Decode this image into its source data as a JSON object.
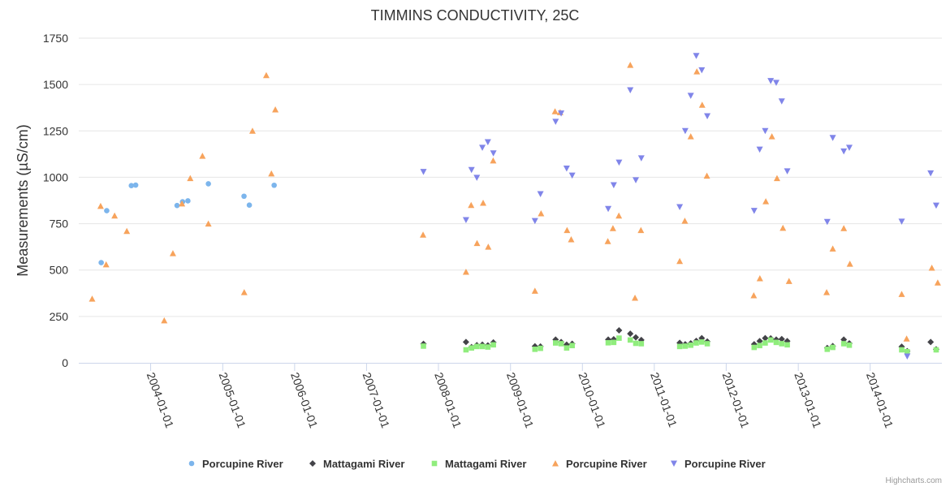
{
  "chart_data": {
    "type": "scatter",
    "title": "TIMMINS CONDUCTIVITY, 25C",
    "ylabel": "Measurements (µS/cm)",
    "xlabel": "",
    "ylim": [
      0,
      1750
    ],
    "y_ticks": [
      0,
      250,
      500,
      750,
      1000,
      1250,
      1500,
      1750
    ],
    "xlim": [
      "2003-01-01",
      "2014-12-31"
    ],
    "x_ticks": [
      "2004-01-01",
      "2005-01-01",
      "2006-01-01",
      "2007-01-01",
      "2008-01-01",
      "2009-01-01",
      "2010-01-01",
      "2011-01-01",
      "2012-01-01",
      "2013-01-01",
      "2014-01-01"
    ],
    "grid": "horizontal",
    "legend": "bottom",
    "credits": "Highcharts.com",
    "series": [
      {
        "name": "Porcupine River",
        "marker": "circle",
        "color": "#7cb5ec",
        "points": [
          [
            "2003-04-25",
            540
          ],
          [
            "2003-05-23",
            820
          ],
          [
            "2003-09-25",
            955
          ],
          [
            "2003-10-17",
            958
          ],
          [
            "2004-05-14",
            848
          ],
          [
            "2004-06-11",
            868
          ],
          [
            "2004-07-08",
            873
          ],
          [
            "2004-10-20",
            965
          ],
          [
            "2005-04-19",
            898
          ],
          [
            "2005-05-16",
            850
          ],
          [
            "2005-09-19",
            957
          ]
        ]
      },
      {
        "name": "Mattagami River",
        "marker": "diamond",
        "color": "#434348",
        "points": [
          [
            "2007-10-17",
            102
          ],
          [
            "2008-05-20",
            112
          ],
          [
            "2008-06-17",
            85
          ],
          [
            "2008-07-14",
            95
          ],
          [
            "2008-08-11",
            98
          ],
          [
            "2008-09-08",
            94
          ],
          [
            "2008-10-06",
            110
          ],
          [
            "2009-05-05",
            89
          ],
          [
            "2009-06-02",
            88
          ],
          [
            "2009-08-18",
            125
          ],
          [
            "2009-09-15",
            112
          ],
          [
            "2009-10-13",
            98
          ],
          [
            "2009-11-10",
            103
          ],
          [
            "2010-05-12",
            125
          ],
          [
            "2010-06-09",
            127
          ],
          [
            "2010-07-06",
            175
          ],
          [
            "2010-09-01",
            157
          ],
          [
            "2010-09-29",
            137
          ],
          [
            "2010-10-27",
            123
          ],
          [
            "2011-05-10",
            108
          ],
          [
            "2011-06-07",
            100
          ],
          [
            "2011-07-05",
            105
          ],
          [
            "2011-08-02",
            118
          ],
          [
            "2011-08-30",
            133
          ],
          [
            "2011-09-27",
            115
          ],
          [
            "2012-05-22",
            100
          ],
          [
            "2012-06-19",
            117
          ],
          [
            "2012-07-17",
            133
          ],
          [
            "2012-08-14",
            132
          ],
          [
            "2012-09-11",
            125
          ],
          [
            "2012-10-09",
            128
          ],
          [
            "2012-11-06",
            117
          ],
          [
            "2013-05-28",
            80
          ],
          [
            "2013-06-25",
            90
          ],
          [
            "2013-08-20",
            125
          ],
          [
            "2013-09-17",
            105
          ],
          [
            "2014-06-10",
            87
          ],
          [
            "2014-07-08",
            63
          ],
          [
            "2014-11-04",
            112
          ],
          [
            "2014-12-02",
            73
          ]
        ]
      },
      {
        "name": "Mattagami River",
        "marker": "square",
        "color": "#90ed7d",
        "points": [
          [
            "2007-10-17",
            90
          ],
          [
            "2008-05-20",
            70
          ],
          [
            "2008-06-17",
            80
          ],
          [
            "2008-07-14",
            88
          ],
          [
            "2008-08-11",
            88
          ],
          [
            "2008-09-08",
            85
          ],
          [
            "2008-10-06",
            97
          ],
          [
            "2009-05-05",
            73
          ],
          [
            "2009-06-02",
            78
          ],
          [
            "2009-08-18",
            107
          ],
          [
            "2009-09-15",
            103
          ],
          [
            "2009-10-13",
            80
          ],
          [
            "2009-11-10",
            93
          ],
          [
            "2010-05-12",
            108
          ],
          [
            "2010-06-09",
            110
          ],
          [
            "2010-07-06",
            133
          ],
          [
            "2010-09-01",
            123
          ],
          [
            "2010-09-29",
            105
          ],
          [
            "2010-10-27",
            103
          ],
          [
            "2011-05-10",
            88
          ],
          [
            "2011-06-07",
            90
          ],
          [
            "2011-07-05",
            95
          ],
          [
            "2011-08-02",
            107
          ],
          [
            "2011-08-30",
            112
          ],
          [
            "2011-09-27",
            103
          ],
          [
            "2012-05-22",
            83
          ],
          [
            "2012-06-19",
            93
          ],
          [
            "2012-07-17",
            107
          ],
          [
            "2012-08-14",
            123
          ],
          [
            "2012-09-11",
            110
          ],
          [
            "2012-10-09",
            103
          ],
          [
            "2012-11-06",
            97
          ],
          [
            "2013-05-28",
            73
          ],
          [
            "2013-06-25",
            83
          ],
          [
            "2013-08-20",
            103
          ],
          [
            "2013-09-17",
            95
          ],
          [
            "2014-06-10",
            70
          ],
          [
            "2014-07-08",
            60
          ],
          [
            "2014-12-02",
            70
          ]
        ]
      },
      {
        "name": "Porcupine River",
        "marker": "triangle",
        "color": "#f7a35c",
        "points": [
          [
            "2003-03-10",
            345
          ],
          [
            "2003-04-22",
            845
          ],
          [
            "2003-05-20",
            530
          ],
          [
            "2003-07-02",
            793
          ],
          [
            "2003-09-02",
            710
          ],
          [
            "2004-03-10",
            228
          ],
          [
            "2004-04-23",
            590
          ],
          [
            "2004-06-08",
            858
          ],
          [
            "2004-07-20",
            995
          ],
          [
            "2004-09-20",
            1115
          ],
          [
            "2004-10-20",
            750
          ],
          [
            "2005-04-20",
            380
          ],
          [
            "2005-06-01",
            1250
          ],
          [
            "2005-08-10",
            1550
          ],
          [
            "2005-09-05",
            1020
          ],
          [
            "2005-09-25",
            1365
          ],
          [
            "2007-10-15",
            690
          ],
          [
            "2008-05-20",
            490
          ],
          [
            "2008-06-15",
            850
          ],
          [
            "2008-07-15",
            645
          ],
          [
            "2008-08-15",
            862
          ],
          [
            "2008-09-10",
            625
          ],
          [
            "2008-10-05",
            1090
          ],
          [
            "2009-05-05",
            388
          ],
          [
            "2009-06-05",
            805
          ],
          [
            "2009-08-15",
            1355
          ],
          [
            "2009-09-10",
            1350
          ],
          [
            "2009-10-15",
            715
          ],
          [
            "2009-11-05",
            665
          ],
          [
            "2010-05-10",
            655
          ],
          [
            "2010-06-05",
            725
          ],
          [
            "2010-07-05",
            793
          ],
          [
            "2010-09-01",
            1605
          ],
          [
            "2010-09-25",
            350
          ],
          [
            "2010-10-25",
            715
          ],
          [
            "2011-05-10",
            548
          ],
          [
            "2011-06-05",
            765
          ],
          [
            "2011-07-05",
            1220
          ],
          [
            "2011-08-05",
            1570
          ],
          [
            "2011-09-01",
            1390
          ],
          [
            "2011-09-25",
            1008
          ],
          [
            "2012-05-20",
            363
          ],
          [
            "2012-06-20",
            455
          ],
          [
            "2012-07-20",
            870
          ],
          [
            "2012-08-20",
            1220
          ],
          [
            "2012-09-15",
            995
          ],
          [
            "2012-10-15",
            727
          ],
          [
            "2012-11-15",
            440
          ],
          [
            "2013-05-25",
            380
          ],
          [
            "2013-06-25",
            615
          ],
          [
            "2013-08-20",
            725
          ],
          [
            "2013-09-20",
            533
          ],
          [
            "2014-06-10",
            370
          ],
          [
            "2014-07-05",
            130
          ],
          [
            "2014-11-10",
            512
          ],
          [
            "2014-12-10",
            432
          ]
        ]
      },
      {
        "name": "Porcupine River",
        "marker": "triangle-down",
        "color": "#8085e9",
        "points": [
          [
            "2007-10-17",
            1030
          ],
          [
            "2008-05-20",
            770
          ],
          [
            "2008-06-17",
            1040
          ],
          [
            "2008-07-14",
            998
          ],
          [
            "2008-08-11",
            1160
          ],
          [
            "2008-09-08",
            1190
          ],
          [
            "2008-10-06",
            1130
          ],
          [
            "2009-05-05",
            765
          ],
          [
            "2009-06-02",
            910
          ],
          [
            "2009-08-18",
            1300
          ],
          [
            "2009-09-15",
            1345
          ],
          [
            "2009-10-13",
            1048
          ],
          [
            "2009-11-10",
            1010
          ],
          [
            "2010-05-12",
            830
          ],
          [
            "2010-06-09",
            958
          ],
          [
            "2010-07-06",
            1080
          ],
          [
            "2010-09-01",
            1470
          ],
          [
            "2010-09-29",
            985
          ],
          [
            "2010-10-27",
            1103
          ],
          [
            "2011-05-10",
            840
          ],
          [
            "2011-06-07",
            1250
          ],
          [
            "2011-07-05",
            1440
          ],
          [
            "2011-08-02",
            1655
          ],
          [
            "2011-08-30",
            1578
          ],
          [
            "2011-09-27",
            1330
          ],
          [
            "2012-05-22",
            820
          ],
          [
            "2012-06-19",
            1150
          ],
          [
            "2012-07-17",
            1250
          ],
          [
            "2012-08-14",
            1520
          ],
          [
            "2012-09-11",
            1510
          ],
          [
            "2012-10-09",
            1410
          ],
          [
            "2012-11-06",
            1033
          ],
          [
            "2013-05-28",
            760
          ],
          [
            "2013-06-25",
            1213
          ],
          [
            "2013-08-20",
            1140
          ],
          [
            "2013-09-17",
            1160
          ],
          [
            "2014-06-10",
            762
          ],
          [
            "2014-07-08",
            35
          ],
          [
            "2014-11-04",
            1022
          ],
          [
            "2014-12-02",
            848
          ]
        ]
      }
    ]
  }
}
